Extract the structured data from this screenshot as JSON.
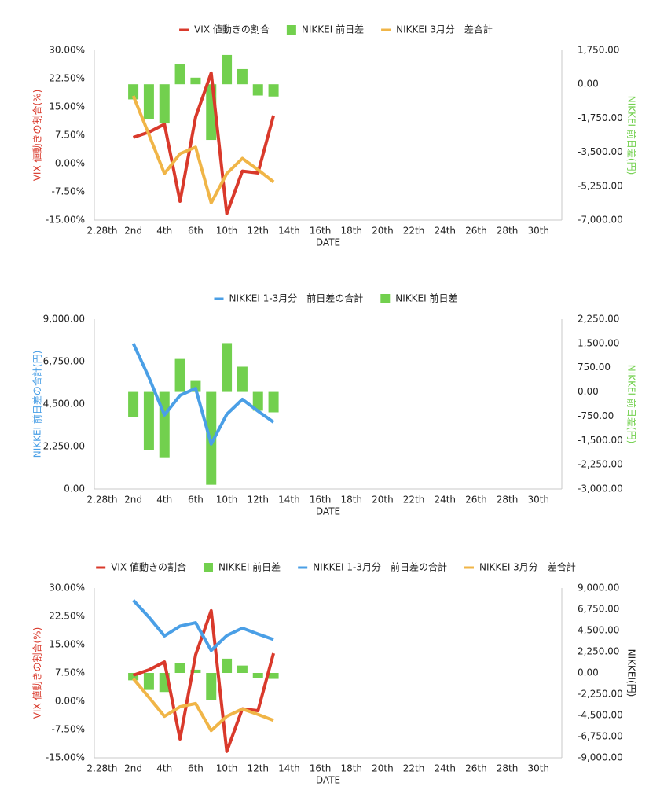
{
  "chart_data": [
    {
      "type": "combo",
      "categories": [
        "2.28th",
        null,
        "2nd",
        null,
        "4th",
        null,
        "6th",
        null,
        "10th",
        null,
        "12th",
        null,
        "14th",
        null,
        "16th",
        null,
        "18th",
        null,
        "20th",
        null,
        "22th",
        null,
        "24th",
        null,
        "26th",
        null,
        "28th",
        null,
        "30th",
        null
      ],
      "series": [
        {
          "name": "VIX 値動きの割合",
          "type": "line",
          "color": "#d9392b",
          "values": [
            null,
            null,
            6.9,
            8.3,
            10.4,
            -10,
            12.3,
            24,
            -13.3,
            -2,
            -2.5,
            12.7,
            null,
            null,
            null,
            null,
            null,
            null,
            null,
            null,
            null,
            null,
            null,
            null,
            null,
            null,
            null,
            null,
            null,
            null
          ]
        },
        {
          "name": "NIKKEI 前日差",
          "type": "bar",
          "color": "#72d04e",
          "axis": "y2",
          "values": [
            null,
            null,
            -780,
            -1800,
            -2020,
            1020,
            340,
            -2870,
            1510,
            780,
            -580,
            -630,
            null,
            null,
            null,
            null,
            null,
            null,
            null,
            null,
            null,
            null,
            null,
            null,
            null,
            null,
            null,
            null,
            null,
            null
          ]
        },
        {
          "name": "NIKKEI 3月分　差合計",
          "type": "line",
          "color": "#f0b547",
          "axis": "y2",
          "values": [
            null,
            null,
            -600,
            -2580,
            -4600,
            -3580,
            -3240,
            -6110,
            -4600,
            -3820,
            -4400,
            -5030,
            null,
            null,
            null,
            null,
            null,
            null,
            null,
            null,
            null,
            null,
            null,
            null,
            null,
            null,
            null,
            null,
            null,
            null
          ]
        }
      ],
      "xlabel": "DATE",
      "ylabel": "VIX 値動きの割合(%)",
      "y2label": "NIKKEI 前日差(円)",
      "ylabel_color": "#d9392b",
      "y2label_color": "#72d04e",
      "ylim": [
        -15,
        30
      ],
      "yticks": [
        {
          "value": 30,
          "label": "30.00%"
        },
        {
          "value": 22.5,
          "label": "22.50%"
        },
        {
          "value": 15,
          "label": "15.00%"
        },
        {
          "value": 7.5,
          "label": "7.50%"
        },
        {
          "value": 0,
          "label": "0.00%"
        },
        {
          "value": -7.5,
          "label": "-7.50%"
        },
        {
          "value": -15,
          "label": "-15.00%"
        }
      ],
      "y2lim": [
        -7000,
        1750
      ],
      "y2ticks": [
        {
          "value": 1750,
          "label": "1,750.00"
        },
        {
          "value": 0,
          "label": "0.00"
        },
        {
          "value": -1750,
          "label": "-1,750.00"
        },
        {
          "value": -3500,
          "label": "-3,500.00"
        },
        {
          "value": -5250,
          "label": "-5,250.00"
        },
        {
          "value": -7000,
          "label": "-7,000.00"
        }
      ],
      "grid": false,
      "legend": "top"
    },
    {
      "type": "combo",
      "categories": [
        "2.28th",
        null,
        "2nd",
        null,
        "4th",
        null,
        "6th",
        null,
        "10th",
        null,
        "12th",
        null,
        "14th",
        null,
        "16th",
        null,
        "18th",
        null,
        "20th",
        null,
        "22th",
        null,
        "24th",
        null,
        "26th",
        null,
        "28th",
        null,
        "30th",
        null
      ],
      "series": [
        {
          "name": "NIKKEI 1-3月分　前日差の合計",
          "type": "line",
          "color": "#4a9fe6",
          "values": [
            null,
            null,
            7710,
            5920,
            3920,
            4960,
            5330,
            2380,
            3960,
            4750,
            4130,
            3540,
            null,
            null,
            null,
            null,
            null,
            null,
            null,
            null,
            null,
            null,
            null,
            null,
            null,
            null,
            null,
            null,
            null,
            null
          ]
        },
        {
          "name": "NIKKEI 前日差",
          "type": "bar",
          "color": "#72d04e",
          "axis": "y2",
          "values": [
            null,
            null,
            -780,
            -1800,
            -2020,
            1020,
            340,
            -2870,
            1510,
            780,
            -580,
            -630,
            null,
            null,
            null,
            null,
            null,
            null,
            null,
            null,
            null,
            null,
            null,
            null,
            null,
            null,
            null,
            null,
            null,
            null
          ]
        }
      ],
      "xlabel": "DATE",
      "ylabel": "NIKKEI 前日差の合計(円)",
      "y2label": "NIKKEI 前日差(円)",
      "ylabel_color": "#4a9fe6",
      "y2label_color": "#72d04e",
      "ylim": [
        0,
        9000
      ],
      "yticks": [
        {
          "value": 9000,
          "label": "9,000.00"
        },
        {
          "value": 6750,
          "label": "6,750.00"
        },
        {
          "value": 4500,
          "label": "4,500.00"
        },
        {
          "value": 2250,
          "label": "2,250.00"
        },
        {
          "value": 0,
          "label": "0.00"
        }
      ],
      "y2lim": [
        -3000,
        2250
      ],
      "y2ticks": [
        {
          "value": 2250,
          "label": "2,250.00"
        },
        {
          "value": 1500,
          "label": "1,500.00"
        },
        {
          "value": 750,
          "label": "750.00"
        },
        {
          "value": 0,
          "label": "0.00"
        },
        {
          "value": -750,
          "label": "-750.00"
        },
        {
          "value": -1500,
          "label": "-1,500.00"
        },
        {
          "value": -2250,
          "label": "-2,250.00"
        },
        {
          "value": -3000,
          "label": "-3,000.00"
        }
      ],
      "grid": false,
      "legend": "top"
    },
    {
      "type": "combo",
      "categories": [
        "2.28th",
        null,
        "2nd",
        null,
        "4th",
        null,
        "6th",
        null,
        "10th",
        null,
        "12th",
        null,
        "14th",
        null,
        "16th",
        null,
        "18th",
        null,
        "20th",
        null,
        "22th",
        null,
        "24th",
        null,
        "26th",
        null,
        "28th",
        null,
        "30th",
        null
      ],
      "series": [
        {
          "name": "VIX 値動きの割合",
          "type": "line",
          "color": "#d9392b",
          "values": [
            null,
            null,
            6.9,
            8.3,
            10.4,
            -10,
            12.3,
            24,
            -13.3,
            -2,
            -2.5,
            12.7,
            null,
            null,
            null,
            null,
            null,
            null,
            null,
            null,
            null,
            null,
            null,
            null,
            null,
            null,
            null,
            null,
            null,
            null
          ]
        },
        {
          "name": "NIKKEI 前日差",
          "type": "bar",
          "color": "#72d04e",
          "axis": "y2",
          "values": [
            null,
            null,
            -780,
            -1800,
            -2020,
            1020,
            340,
            -2870,
            1510,
            780,
            -580,
            -630,
            null,
            null,
            null,
            null,
            null,
            null,
            null,
            null,
            null,
            null,
            null,
            null,
            null,
            null,
            null,
            null,
            null,
            null
          ]
        },
        {
          "name": "NIKKEI 1-3月分　前日差の合計",
          "type": "line",
          "color": "#4a9fe6",
          "axis": "y2",
          "values": [
            null,
            null,
            7710,
            5920,
            3920,
            4960,
            5330,
            2380,
            3960,
            4750,
            4130,
            3540,
            null,
            null,
            null,
            null,
            null,
            null,
            null,
            null,
            null,
            null,
            null,
            null,
            null,
            null,
            null,
            null,
            null,
            null
          ]
        },
        {
          "name": "NIKKEI 3月分　差合計",
          "type": "line",
          "color": "#f0b547",
          "axis": "y2",
          "values": [
            null,
            null,
            -600,
            -2580,
            -4600,
            -3580,
            -3240,
            -6110,
            -4600,
            -3820,
            -4400,
            -5030,
            null,
            null,
            null,
            null,
            null,
            null,
            null,
            null,
            null,
            null,
            null,
            null,
            null,
            null,
            null,
            null,
            null,
            null
          ]
        }
      ],
      "xlabel": "DATE",
      "ylabel": "VIX 値動きの割合(%)",
      "y2label": "NIKKEI(円)",
      "ylabel_color": "#d9392b",
      "y2label_color": "#222222",
      "ylim": [
        -15,
        30
      ],
      "yticks": [
        {
          "value": 30,
          "label": "30.00%"
        },
        {
          "value": 22.5,
          "label": "22.50%"
        },
        {
          "value": 15,
          "label": "15.00%"
        },
        {
          "value": 7.5,
          "label": "7.50%"
        },
        {
          "value": 0,
          "label": "0.00%"
        },
        {
          "value": -7.5,
          "label": "-7.50%"
        },
        {
          "value": -15,
          "label": "-15.00%"
        }
      ],
      "y2lim": [
        -9000,
        9000
      ],
      "y2ticks": [
        {
          "value": 9000,
          "label": "9,000.00"
        },
        {
          "value": 6750,
          "label": "6,750.00"
        },
        {
          "value": 4500,
          "label": "4,500.00"
        },
        {
          "value": 2250,
          "label": "2,250.00"
        },
        {
          "value": 0,
          "label": "0.00"
        },
        {
          "value": -2250,
          "label": "-2,250.00"
        },
        {
          "value": -4500,
          "label": "-4,500.00"
        },
        {
          "value": -6750,
          "label": "-6,750.00"
        },
        {
          "value": -9000,
          "label": "-9,000.00"
        }
      ],
      "grid": false,
      "legend": "top"
    }
  ]
}
